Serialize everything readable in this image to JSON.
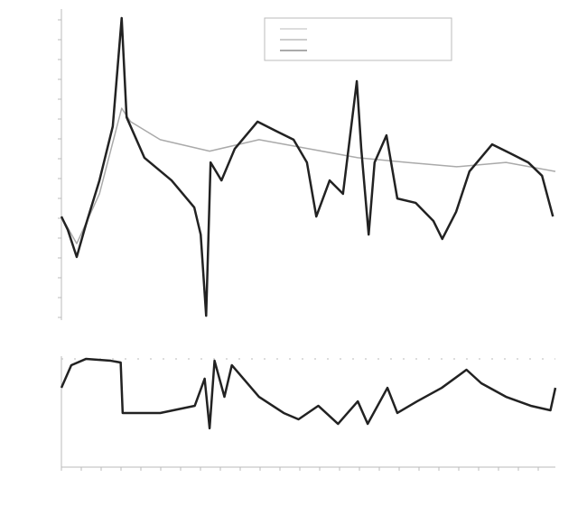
{
  "chart_data": [
    {
      "type": "line",
      "xlim": [
        0,
        100
      ],
      "ylim": [
        0,
        100
      ],
      "series": [
        {
          "color": "#aaaaaa",
          "x": [
            0,
            3.1,
            7.7,
            12.2,
            14,
            20,
            30,
            40,
            50,
            60,
            70,
            80,
            90,
            100
          ],
          "values": [
            33.3,
            24.6,
            40.6,
            68.1,
            63.8,
            58,
            54.3,
            58,
            55.1,
            52.2,
            50.7,
            49.3,
            50.7,
            47.8
          ]
        },
        {
          "color": "#222222",
          "x": [
            0,
            1.3,
            3.1,
            4.9,
            7.7,
            10.4,
            12.2,
            13.2,
            16.8,
            22.3,
            26.9,
            28.2,
            29.3,
            30.2,
            32.4,
            35.1,
            39.7,
            43.3,
            47,
            49.7,
            51.6,
            54.3,
            57,
            59.8,
            60.7,
            62.2,
            63.4,
            65.8,
            68,
            71.7,
            75.3,
            77.1,
            79.9,
            82.6,
            87.2,
            90.9,
            94.5,
            97.3,
            99.5
          ],
          "values": [
            33.3,
            29,
            20.3,
            30.4,
            44.9,
            62.3,
            97.1,
            65.2,
            52.2,
            44.9,
            36.2,
            27.5,
            1.4,
            50.7,
            44.9,
            55.1,
            63.8,
            60.9,
            58,
            50.7,
            33.3,
            44.9,
            40.6,
            76.8,
            55.1,
            27.5,
            50.7,
            59.4,
            39.1,
            37.7,
            31.9,
            26.1,
            34.8,
            47.8,
            56.5,
            53.6,
            50.7,
            46.4,
            33.3
          ]
        }
      ]
    },
    {
      "type": "line",
      "xlim": [
        0,
        100
      ],
      "ylim": [
        0,
        100
      ],
      "series": [
        {
          "color": "#222222",
          "x": [
            0,
            2,
            5,
            10,
            12,
            12.4,
            20,
            27,
            29,
            30,
            31,
            33,
            34.5,
            40,
            45,
            48,
            52,
            56,
            60,
            62,
            66,
            68,
            72,
            77,
            82,
            85,
            90,
            95,
            99,
            100
          ],
          "values": [
            71.5,
            91.9,
            97.6,
            95.9,
            94.3,
            48.8,
            48.8,
            55.3,
            79.7,
            35,
            95.9,
            63.4,
            91.9,
            63.4,
            48.8,
            43.1,
            55.3,
            39,
            59.3,
            39,
            71.5,
            48.8,
            59.3,
            71.5,
            87.8,
            75.6,
            63.4,
            55.3,
            51.2,
            71.5
          ]
        }
      ]
    }
  ]
}
